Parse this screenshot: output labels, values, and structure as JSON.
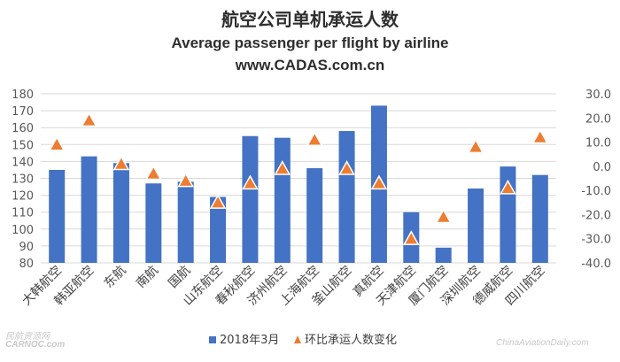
{
  "titles": {
    "title": "航空公司单机承运人数",
    "subtitle": "Average passenger per flight by airline",
    "source": "www.CADAS.com.cn"
  },
  "watermarks": {
    "left_top": "民航资源网",
    "left_bottom": "CARNOC.com",
    "right": "ChinaAviationDaily.com"
  },
  "colors": {
    "bar": "#4472c4",
    "marker": "#ed7d31",
    "grid": "#d9d9d9",
    "axis_text": "#595959"
  },
  "chart_data": {
    "type": "bar",
    "categories": [
      "大韩航空",
      "韩亚航空",
      "东航",
      "南航",
      "国航",
      "山东航空",
      "春秋航空",
      "济州航空",
      "上海航空",
      "釜山航空",
      "真航空",
      "天津航空",
      "厦门航空",
      "深圳航空",
      "德威航空",
      "四川航空"
    ],
    "series": [
      {
        "name": "2018年3月",
        "type": "bar",
        "axis": "left",
        "values": [
          135,
          143,
          139,
          127,
          128,
          119,
          155,
          154,
          136,
          158,
          173,
          110,
          89,
          124,
          137,
          132
        ]
      },
      {
        "name": "环比承运人数变化",
        "type": "scatter",
        "marker": "triangle",
        "axis": "right",
        "values": [
          9,
          19,
          1,
          -3,
          -6,
          -15,
          -7,
          -1,
          11,
          -1,
          -7,
          -30,
          -21,
          8,
          -9,
          12
        ]
      }
    ],
    "ylim_left": [
      80,
      180
    ],
    "yticks_left": [
      "80",
      "90",
      "100",
      "110",
      "120",
      "130",
      "140",
      "150",
      "160",
      "170",
      "180"
    ],
    "ylim_right": [
      -40,
      30
    ],
    "yticks_right": [
      "-40.0",
      "-30.0",
      "-20.0",
      "-10.0",
      "0.0",
      "10.0",
      "20.0",
      "30.0"
    ],
    "grid": true,
    "legend": {
      "position": "bottom",
      "entries": [
        "2018年3月",
        "环比承运人数变化"
      ]
    }
  }
}
